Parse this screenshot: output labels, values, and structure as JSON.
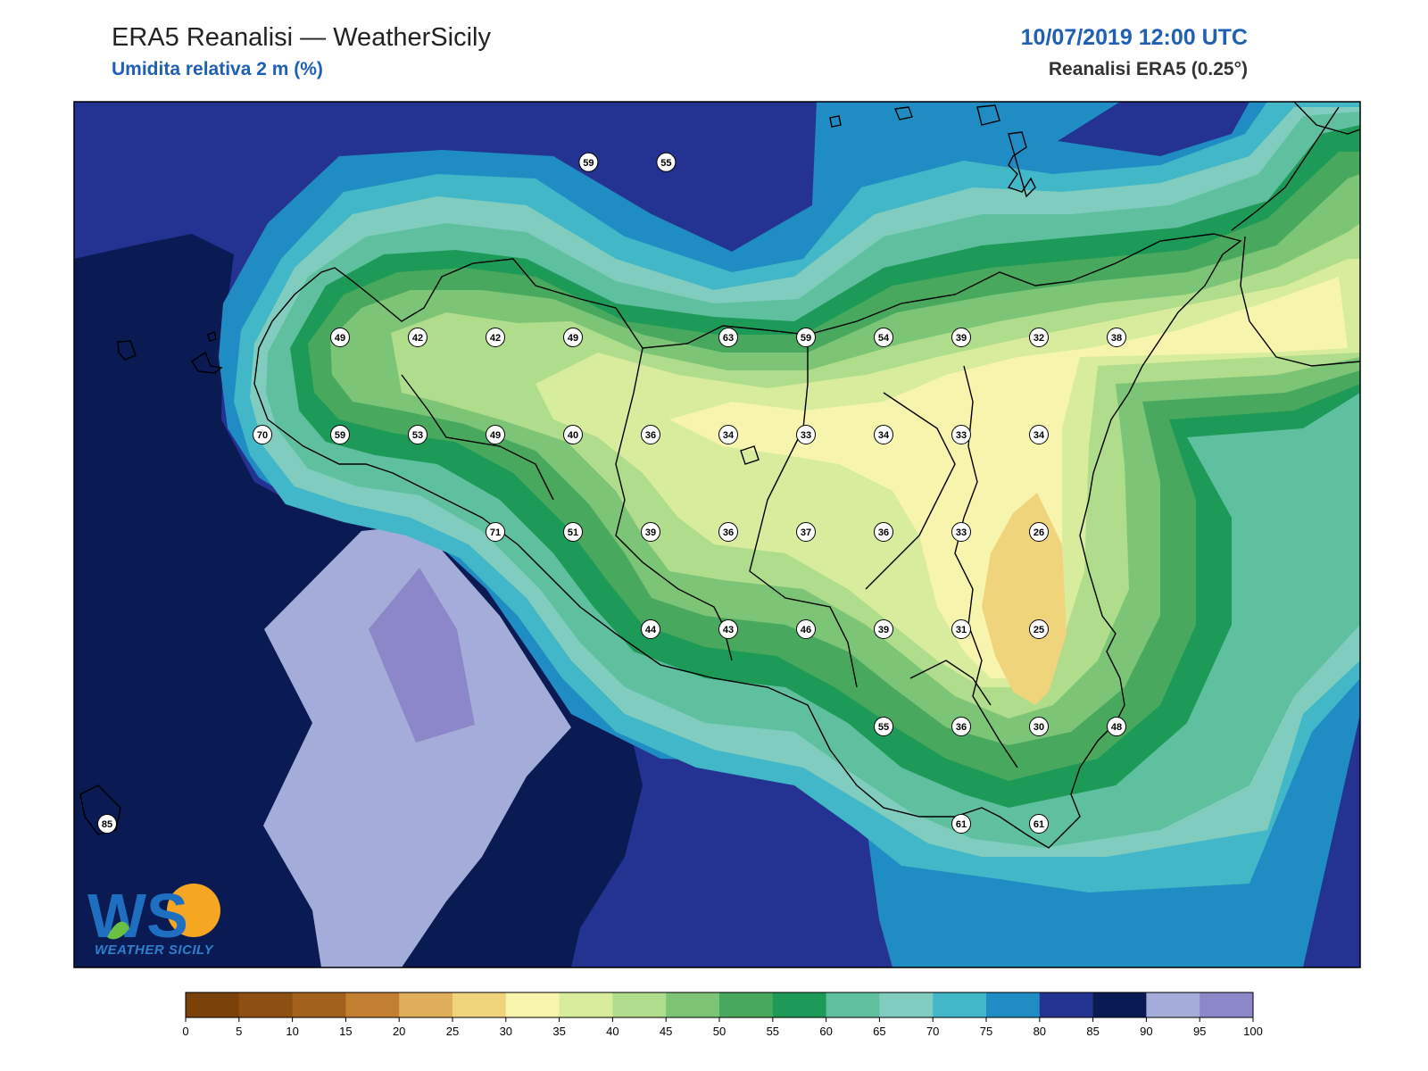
{
  "header": {
    "title": "ERA5 Reanalisi — WeatherSicily",
    "variable": "Umidita relativa 2 m (%)",
    "datetime": "10/07/2019 12:00 UTC",
    "source": "Reanalisi ERA5 (0.25°)"
  },
  "logo": {
    "letters": "WS",
    "name": "WEATHER SICILY"
  },
  "colorbar": {
    "ticks": [
      "0",
      "5",
      "10",
      "15",
      "20",
      "25",
      "30",
      "35",
      "40",
      "45",
      "50",
      "55",
      "60",
      "65",
      "70",
      "75",
      "80",
      "85",
      "90",
      "95",
      "100"
    ],
    "colors": [
      "#7a4108",
      "#8e4f12",
      "#a2611d",
      "#c17f2f",
      "#dfae58",
      "#f0d47c",
      "#f7f4ad",
      "#d8ec9e",
      "#b0dd8b",
      "#7dc576",
      "#48a95e",
      "#1e9a58",
      "#5fc09f",
      "#80cdbf",
      "#42b7c8",
      "#1f8dc4",
      "#243392",
      "#0a1b54",
      "#a4add9",
      "#8b87c8"
    ],
    "pairs": [
      [
        "0",
        "5"
      ],
      [
        "5",
        "10"
      ],
      [
        "10",
        "15"
      ],
      [
        "15",
        "20"
      ],
      [
        "20",
        "25"
      ],
      [
        "25",
        "30"
      ],
      [
        "30",
        "35"
      ],
      [
        "35",
        "40"
      ],
      [
        "40",
        "45"
      ],
      [
        "45",
        "50"
      ],
      [
        "50",
        "55"
      ],
      [
        "55",
        "60"
      ],
      [
        "60",
        "65"
      ],
      [
        "65",
        "70"
      ],
      [
        "70",
        "75"
      ],
      [
        "75",
        "80"
      ],
      [
        "80",
        "85"
      ],
      [
        "85",
        "90"
      ],
      [
        "90",
        "95"
      ],
      [
        "95",
        "100"
      ]
    ]
  },
  "stations": [
    {
      "value": "59",
      "x": 12.7,
      "y": 38.5
    },
    {
      "value": "55",
      "x": 12.95,
      "y": 38.5
    },
    {
      "value": "49",
      "x": 11.9,
      "y": 38.05
    },
    {
      "value": "42",
      "x": 12.15,
      "y": 38.05
    },
    {
      "value": "42",
      "x": 12.4,
      "y": 38.05
    },
    {
      "value": "49",
      "x": 12.65,
      "y": 38.05
    },
    {
      "value": "63",
      "x": 13.15,
      "y": 38.05
    },
    {
      "value": "59",
      "x": 13.4,
      "y": 38.05
    },
    {
      "value": "54",
      "x": 13.65,
      "y": 38.05
    },
    {
      "value": "39",
      "x": 13.9,
      "y": 38.05
    },
    {
      "value": "32",
      "x": 14.15,
      "y": 38.05
    },
    {
      "value": "38",
      "x": 14.4,
      "y": 38.05
    },
    {
      "value": "70",
      "x": 11.65,
      "y": 37.8
    },
    {
      "value": "59",
      "x": 11.9,
      "y": 37.8
    },
    {
      "value": "53",
      "x": 12.15,
      "y": 37.8
    },
    {
      "value": "49",
      "x": 12.4,
      "y": 37.8
    },
    {
      "value": "40",
      "x": 12.65,
      "y": 37.8
    },
    {
      "value": "36",
      "x": 12.9,
      "y": 37.8
    },
    {
      "value": "34",
      "x": 13.15,
      "y": 37.8
    },
    {
      "value": "33",
      "x": 13.4,
      "y": 37.8
    },
    {
      "value": "34",
      "x": 13.65,
      "y": 37.8
    },
    {
      "value": "33",
      "x": 13.9,
      "y": 37.8
    },
    {
      "value": "34",
      "x": 14.15,
      "y": 37.8
    },
    {
      "value": "71",
      "x": 12.4,
      "y": 37.55
    },
    {
      "value": "51",
      "x": 12.65,
      "y": 37.55
    },
    {
      "value": "39",
      "x": 12.9,
      "y": 37.55
    },
    {
      "value": "36",
      "x": 13.15,
      "y": 37.55
    },
    {
      "value": "37",
      "x": 13.4,
      "y": 37.55
    },
    {
      "value": "36",
      "x": 13.65,
      "y": 37.55
    },
    {
      "value": "33",
      "x": 13.9,
      "y": 37.55
    },
    {
      "value": "26",
      "x": 14.15,
      "y": 37.55
    },
    {
      "value": "44",
      "x": 12.9,
      "y": 37.3
    },
    {
      "value": "43",
      "x": 13.15,
      "y": 37.3
    },
    {
      "value": "46",
      "x": 13.4,
      "y": 37.3
    },
    {
      "value": "39",
      "x": 13.65,
      "y": 37.3
    },
    {
      "value": "31",
      "x": 13.9,
      "y": 37.3
    },
    {
      "value": "25",
      "x": 14.15,
      "y": 37.3
    },
    {
      "value": "55",
      "x": 13.65,
      "y": 37.05
    },
    {
      "value": "36",
      "x": 13.9,
      "y": 37.05
    },
    {
      "value": "30",
      "x": 14.15,
      "y": 37.05
    },
    {
      "value": "48",
      "x": 14.4,
      "y": 37.05
    },
    {
      "value": "61",
      "x": 13.9,
      "y": 36.8
    },
    {
      "value": "61",
      "x": 14.15,
      "y": 36.8
    },
    {
      "value": "85",
      "x": 11.15,
      "y": 36.8
    }
  ]
}
